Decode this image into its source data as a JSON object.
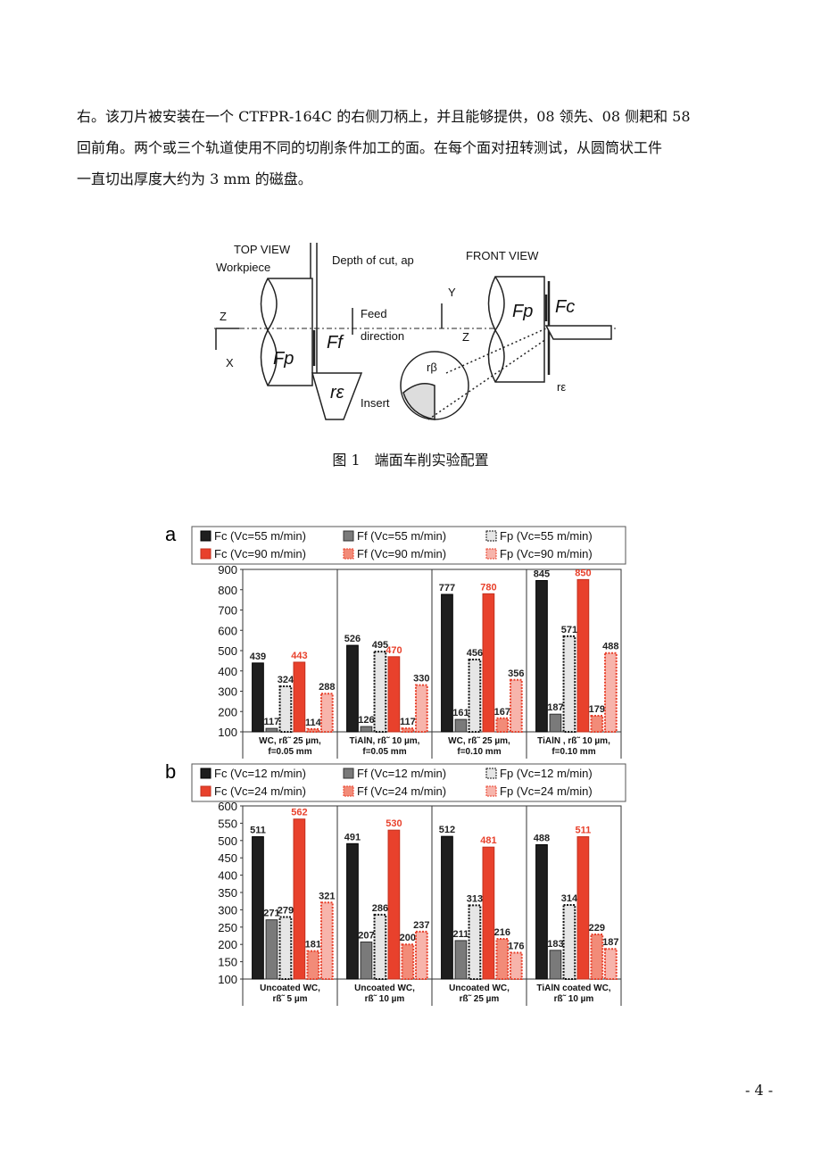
{
  "paragraph_lines": [
    "右。该刀片被安装在一个 CTFPR-164C 的右侧刀柄上，并且能够提供，08 领先、08 侧耙和 58",
    "回前角。两个或三个轨道使用不同的切削条件加工的面。在每个面对扭转测试，从圆筒状工件",
    "一直切出厚度大约为 3 mm 的磁盘。"
  ],
  "diagram": {
    "labels": [
      "TOP VIEW",
      "Workpiece",
      "Depth of cut, ap",
      "FRONT VIEW",
      "Y",
      "Feed",
      "direction",
      "Z",
      "X",
      "Ff",
      "Fp",
      "rε",
      "Insert",
      "Z",
      "Fp",
      "Fc",
      "rβ",
      "rε"
    ]
  },
  "figure_caption": "图 1　端面车削实验配置",
  "chart_data": [
    {
      "type": "bar",
      "panel": "a",
      "categories": [
        "WC, rß˜ 25 µm,\nf=0.05 mm",
        "TiAlN, rß˜ 10 µm,\nf=0.05 mm",
        "WC, rß˜ 25 µm,\nf=0.10 mm",
        "TiAlN , rß˜ 10 µm,\nf=0.10 mm"
      ],
      "series": [
        {
          "name": "Fc (Vc=55 m/min)",
          "color": "#1e1e1e",
          "edge": "#000",
          "dash": false,
          "label_color": "#222",
          "values": [
            439,
            526,
            777,
            845
          ]
        },
        {
          "name": "Ff (Vc=55 m/min)",
          "color": "#7a7a7a",
          "edge": "#333",
          "dash": false,
          "label_color": "#222",
          "values": [
            117,
            126,
            161,
            187
          ]
        },
        {
          "name": "Fp  (Vc=55 m/min)",
          "color": "#e6e6e6",
          "edge": "#111",
          "dash": true,
          "label_color": "#222",
          "values": [
            324,
            495,
            456,
            571
          ]
        },
        {
          "name": "Fc (Vc=90 m/min)",
          "color": "#e8412c",
          "edge": "#c2301e",
          "dash": false,
          "label_color": "#e8412c",
          "values": [
            443,
            470,
            780,
            850
          ]
        },
        {
          "name": "Ff (Vc=90 m/min)",
          "color": "#f28b78",
          "edge": "#e8412c",
          "dash": true,
          "label_color": "#222",
          "values": [
            114,
            117,
            167,
            179
          ]
        },
        {
          "name": "Fp  (Vc=90 m/min)",
          "color": "#f7b4ab",
          "edge": "#e8412c",
          "dash": true,
          "label_color": "#222",
          "values": [
            288,
            330,
            356,
            488
          ]
        }
      ],
      "ylim": [
        100,
        900
      ],
      "yticks": [
        100,
        200,
        300,
        400,
        500,
        600,
        700,
        800,
        900
      ],
      "grid": false
    },
    {
      "type": "bar",
      "panel": "b",
      "categories": [
        "Uncoated WC,\nrß˜ 5 µm",
        "Uncoated WC,\nrß˜ 10 µm",
        "Uncoated WC,\nrß˜ 25 µm",
        "TiAlN coated WC,\nrß˜ 10 µm"
      ],
      "series": [
        {
          "name": "Fc (Vc=12 m/min)",
          "color": "#1e1e1e",
          "edge": "#000",
          "dash": false,
          "label_color": "#222",
          "values": [
            511,
            491,
            512,
            488
          ]
        },
        {
          "name": "Ff (Vc=12 m/min)",
          "color": "#7a7a7a",
          "edge": "#333",
          "dash": false,
          "label_color": "#222",
          "values": [
            271,
            207,
            211,
            183
          ]
        },
        {
          "name": "Fp  (Vc=12 m/min)",
          "color": "#e6e6e6",
          "edge": "#111",
          "dash": true,
          "label_color": "#222",
          "values": [
            279,
            286,
            313,
            314
          ]
        },
        {
          "name": "Fc (Vc=24 m/min)",
          "color": "#e8412c",
          "edge": "#c2301e",
          "dash": false,
          "label_color": "#e8412c",
          "values": [
            562,
            530,
            481,
            511
          ]
        },
        {
          "name": "Ff (Vc=24 m/min)",
          "color": "#f28b78",
          "edge": "#e8412c",
          "dash": true,
          "label_color": "#222",
          "values": [
            181,
            200,
            216,
            229
          ]
        },
        {
          "name": "Fp  (Vc=24 m/min)",
          "color": "#f7b4ab",
          "edge": "#e8412c",
          "dash": true,
          "label_color": "#222",
          "values": [
            321,
            237,
            176,
            187
          ]
        }
      ],
      "ylim": [
        100,
        600
      ],
      "yticks": [
        100,
        150,
        200,
        250,
        300,
        350,
        400,
        450,
        500,
        550,
        600
      ],
      "grid": false
    }
  ],
  "page_number": "- 4 -"
}
